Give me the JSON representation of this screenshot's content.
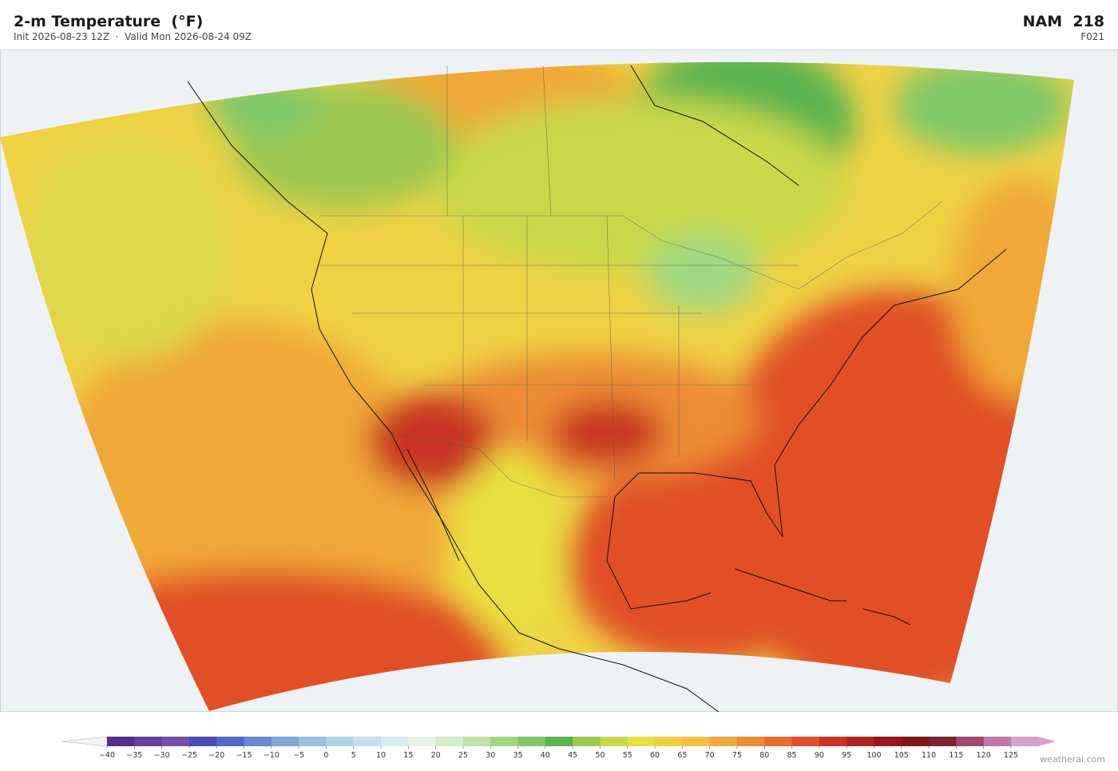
{
  "header": {
    "title": "2-m Temperature  (°F)",
    "subtitle": "Init 2026-08-23 12Z  ·  Valid Mon 2026-08-24 09Z",
    "model": "NAM  218",
    "forecast_hour": "F021"
  },
  "colorbar": {
    "ticks": [
      {
        "value": -40,
        "label": "−40"
      },
      {
        "value": -35,
        "label": "−35"
      },
      {
        "value": -30,
        "label": "−30"
      },
      {
        "value": -25,
        "label": "−25"
      },
      {
        "value": -20,
        "label": "−20"
      },
      {
        "value": -15,
        "label": "−15"
      },
      {
        "value": -10,
        "label": "−10"
      },
      {
        "value": -5,
        "label": "−5"
      },
      0,
      5,
      10,
      15,
      20,
      25,
      30,
      35,
      40,
      45,
      50,
      55,
      60,
      65,
      70,
      75,
      80,
      85,
      90,
      95,
      100,
      105,
      110,
      115,
      120,
      125
    ],
    "colors": [
      "#5a2d8c",
      "#6a3d9a",
      "#7650a8",
      "#4a4ab8",
      "#5068c8",
      "#6a8ad0",
      "#80a8d8",
      "#98c0e0",
      "#aed4e8",
      "#c4e0ec",
      "#d8ecf0",
      "#e4f2e8",
      "#d4eccc",
      "#bce4a0",
      "#a0d880",
      "#80c868",
      "#58b450",
      "#9cc850",
      "#c8d848",
      "#e8e040",
      "#f0d040",
      "#f4c040",
      "#f0a838",
      "#ec8c34",
      "#e86c30",
      "#e05028",
      "#c83424",
      "#b02420",
      "#98181c",
      "#801818",
      "#802030",
      "#a04870",
      "#c078a8"
    ],
    "under_color": "#f4f4f4",
    "over_color": "#d8a0cc"
  },
  "credit": "weatherai.com"
}
